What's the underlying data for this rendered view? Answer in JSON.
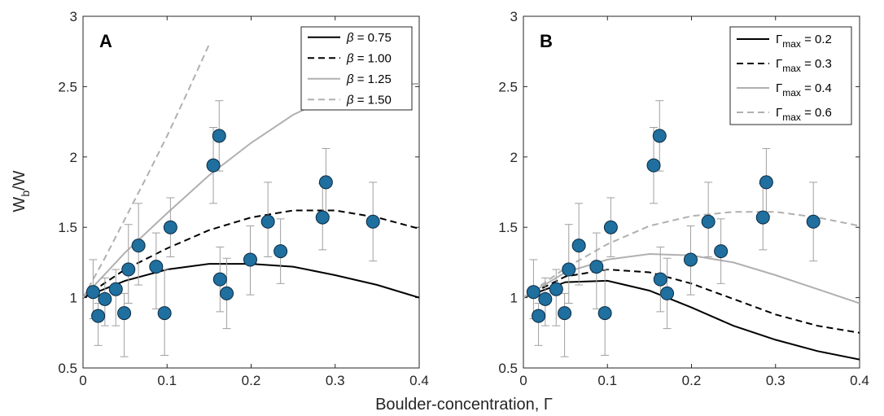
{
  "figure": {
    "ylabel_main": "W",
    "ylabel_sub": "b",
    "ylabel_tail": "/W",
    "xlabel": "Boulder-concentration, Γ"
  },
  "chart_data": [
    {
      "type": "scatter",
      "panel_label": "A",
      "xlim": [
        0,
        0.4
      ],
      "ylim": [
        0.5,
        3
      ],
      "xticks": [
        "0",
        "0.1",
        "0.2",
        "0.3",
        "0.4"
      ],
      "yticks": [
        "0.5",
        "1",
        "1.5",
        "2",
        "2.5",
        "3"
      ],
      "grid": false,
      "legend_position": "top-right",
      "points": {
        "x": [
          0.012,
          0.018,
          0.026,
          0.039,
          0.049,
          0.054,
          0.066,
          0.087,
          0.097,
          0.104,
          0.155,
          0.162,
          0.163,
          0.171,
          0.199,
          0.22,
          0.235,
          0.285,
          0.289,
          0.345
        ],
        "y": [
          1.04,
          0.87,
          0.99,
          1.06,
          0.89,
          1.2,
          1.37,
          1.22,
          0.89,
          1.5,
          1.94,
          2.15,
          1.13,
          1.03,
          1.27,
          1.54,
          1.33,
          1.57,
          1.82,
          1.54
        ],
        "err_lo": [
          0.19,
          0.21,
          0.19,
          0.26,
          0.31,
          0.24,
          0.28,
          0.3,
          0.3,
          0.21,
          0.27,
          0.25,
          0.23,
          0.25,
          0.25,
          0.25,
          0.23,
          0.23,
          0.24,
          0.28
        ],
        "err_hi": [
          0.23,
          0.09,
          0.15,
          0.14,
          0.14,
          0.32,
          0.3,
          0.24,
          0.31,
          0.21,
          0.27,
          0.25,
          0.23,
          0.25,
          0.24,
          0.28,
          0.23,
          0.24,
          0.24,
          0.28
        ]
      },
      "series": [
        {
          "label_sym": "β",
          "label_sub": "",
          "label_val": " = 0.75",
          "color": "#000000",
          "dash": "",
          "x": [
            0,
            0.05,
            0.1,
            0.15,
            0.2,
            0.25,
            0.3,
            0.35,
            0.4
          ],
          "y": [
            1.0,
            1.12,
            1.2,
            1.24,
            1.24,
            1.22,
            1.16,
            1.09,
            1.0
          ]
        },
        {
          "label_sym": "β",
          "label_sub": "",
          "label_val": " = 1.00",
          "color": "#000000",
          "dash": "8,5",
          "x": [
            0,
            0.05,
            0.1,
            0.15,
            0.2,
            0.25,
            0.3,
            0.35,
            0.4
          ],
          "y": [
            1.0,
            1.2,
            1.35,
            1.48,
            1.57,
            1.62,
            1.62,
            1.57,
            1.49
          ]
        },
        {
          "label_sym": "β",
          "label_sub": "",
          "label_val": " = 1.25",
          "color": "#b0b0b0",
          "dash": "",
          "x": [
            0,
            0.05,
            0.1,
            0.15,
            0.2,
            0.25,
            0.3,
            0.35,
            0.4
          ],
          "y": [
            1.0,
            1.32,
            1.6,
            1.87,
            2.1,
            2.3,
            2.44,
            2.51,
            2.52
          ]
        },
        {
          "label_sym": "β",
          "label_sub": "",
          "label_val": " = 1.50",
          "color": "#b0b0b0",
          "dash": "8,5",
          "x": [
            0,
            0.025,
            0.05,
            0.075,
            0.1,
            0.125,
            0.15
          ],
          "y": [
            1.0,
            1.27,
            1.56,
            1.85,
            2.15,
            2.47,
            2.8
          ]
        }
      ]
    },
    {
      "type": "scatter",
      "panel_label": "B",
      "xlim": [
        0,
        0.4
      ],
      "ylim": [
        0.5,
        3
      ],
      "xticks": [
        "0",
        "0.1",
        "0.2",
        "0.3",
        "0.4"
      ],
      "yticks": [
        "0.5",
        "1",
        "1.5",
        "2",
        "2.5",
        "3"
      ],
      "grid": false,
      "legend_position": "top-right",
      "points": {
        "x": [
          0.012,
          0.018,
          0.026,
          0.039,
          0.049,
          0.054,
          0.066,
          0.087,
          0.097,
          0.104,
          0.155,
          0.162,
          0.163,
          0.171,
          0.199,
          0.22,
          0.235,
          0.285,
          0.289,
          0.345
        ],
        "y": [
          1.04,
          0.87,
          0.99,
          1.06,
          0.89,
          1.2,
          1.37,
          1.22,
          0.89,
          1.5,
          1.94,
          2.15,
          1.13,
          1.03,
          1.27,
          1.54,
          1.33,
          1.57,
          1.82,
          1.54
        ],
        "err_lo": [
          0.19,
          0.21,
          0.19,
          0.26,
          0.31,
          0.24,
          0.28,
          0.3,
          0.3,
          0.21,
          0.27,
          0.25,
          0.23,
          0.25,
          0.25,
          0.25,
          0.23,
          0.23,
          0.24,
          0.28
        ],
        "err_hi": [
          0.23,
          0.09,
          0.15,
          0.14,
          0.14,
          0.32,
          0.3,
          0.24,
          0.31,
          0.21,
          0.27,
          0.25,
          0.23,
          0.25,
          0.24,
          0.28,
          0.23,
          0.24,
          0.24,
          0.28
        ]
      },
      "series": [
        {
          "label_sym": "Γ",
          "label_sub": "max",
          "label_val": " = 0.2",
          "color": "#000000",
          "dash": "",
          "x": [
            0,
            0.05,
            0.1,
            0.15,
            0.2,
            0.25,
            0.3,
            0.35,
            0.4
          ],
          "y": [
            1.0,
            1.11,
            1.12,
            1.05,
            0.93,
            0.8,
            0.7,
            0.62,
            0.56
          ]
        },
        {
          "label_sym": "Γ",
          "label_sub": "max",
          "label_val": " = 0.3",
          "color": "#000000",
          "dash": "8,5",
          "x": [
            0,
            0.05,
            0.1,
            0.15,
            0.2,
            0.25,
            0.3,
            0.35,
            0.4
          ],
          "y": [
            1.0,
            1.15,
            1.2,
            1.18,
            1.1,
            0.99,
            0.88,
            0.8,
            0.75
          ]
        },
        {
          "label_sym": "Γ",
          "label_sub": "max",
          "label_val": " = 0.4",
          "color": "#b0b0b0",
          "dash": "",
          "x": [
            0,
            0.05,
            0.1,
            0.15,
            0.2,
            0.25,
            0.3,
            0.35,
            0.4
          ],
          "y": [
            1.0,
            1.18,
            1.27,
            1.31,
            1.3,
            1.25,
            1.16,
            1.06,
            0.96
          ]
        },
        {
          "label_sym": "Γ",
          "label_sub": "max",
          "label_val": " = 0.6",
          "color": "#b0b0b0",
          "dash": "8,5",
          "x": [
            0,
            0.05,
            0.1,
            0.15,
            0.2,
            0.25,
            0.3,
            0.35,
            0.4
          ],
          "y": [
            1.0,
            1.21,
            1.38,
            1.51,
            1.58,
            1.61,
            1.61,
            1.57,
            1.51
          ]
        }
      ]
    }
  ],
  "colors": {
    "marker_fill": "#1f6f9f",
    "marker_edge": "#0d2a40",
    "errorbar": "#a0a0a0",
    "axis": "#262626"
  }
}
